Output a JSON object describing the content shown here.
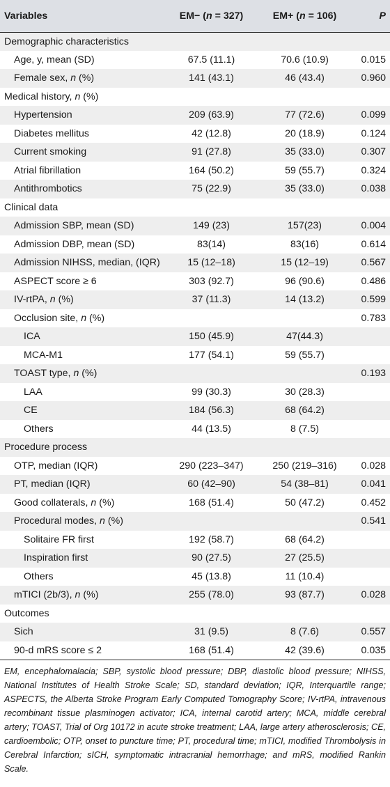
{
  "header": {
    "variables": "Variables",
    "em_minus": "EM− (n = 327)",
    "em_plus": "EM+ (n = 106)",
    "p": "P"
  },
  "rows": [
    {
      "label": "Demographic characteristics",
      "level": 0,
      "em_minus": "",
      "em_plus": "",
      "p": ""
    },
    {
      "label": "Age, y, mean (SD)",
      "level": 1,
      "em_minus": "67.5 (11.1)",
      "em_plus": "70.6 (10.9)",
      "p": "0.015"
    },
    {
      "label": "Female sex, n (%)",
      "level": 1,
      "em_minus": "141 (43.1)",
      "em_plus": "46 (43.4)",
      "p": "0.960"
    },
    {
      "label": "Medical history, n (%)",
      "level": 0,
      "em_minus": "",
      "em_plus": "",
      "p": ""
    },
    {
      "label": "Hypertension",
      "level": 1,
      "em_minus": "209 (63.9)",
      "em_plus": "77 (72.6)",
      "p": "0.099"
    },
    {
      "label": "Diabetes mellitus",
      "level": 1,
      "em_minus": "42 (12.8)",
      "em_plus": "20 (18.9)",
      "p": "0.124"
    },
    {
      "label": "Current smoking",
      "level": 1,
      "em_minus": "91 (27.8)",
      "em_plus": "35 (33.0)",
      "p": "0.307"
    },
    {
      "label": "Atrial fibrillation",
      "level": 1,
      "em_minus": "164 (50.2)",
      "em_plus": "59 (55.7)",
      "p": "0.324"
    },
    {
      "label": "Antithrombotics",
      "level": 1,
      "em_minus": "75 (22.9)",
      "em_plus": "35 (33.0)",
      "p": "0.038"
    },
    {
      "label": "Clinical data",
      "level": 0,
      "em_minus": "",
      "em_plus": "",
      "p": ""
    },
    {
      "label": "Admission SBP, mean (SD)",
      "level": 1,
      "em_minus": "149 (23)",
      "em_plus": "157(23)",
      "p": "0.004"
    },
    {
      "label": "Admission DBP, mean (SD)",
      "level": 1,
      "em_minus": "83(14)",
      "em_plus": "83(16)",
      "p": "0.614"
    },
    {
      "label": "Admission NIHSS, median, (IQR)",
      "level": 1,
      "em_minus": "15 (12–18)",
      "em_plus": "15 (12–19)",
      "p": "0.567"
    },
    {
      "label": "ASPECT score ≥ 6",
      "level": 1,
      "em_minus": "303 (92.7)",
      "em_plus": "96 (90.6)",
      "p": "0.486"
    },
    {
      "label": "IV-rtPA, n (%)",
      "level": 1,
      "em_minus": "37 (11.3)",
      "em_plus": "14 (13.2)",
      "p": "0.599"
    },
    {
      "label": "Occlusion site, n (%)",
      "level": 1,
      "em_minus": "",
      "em_plus": "",
      "p": "0.783"
    },
    {
      "label": "ICA",
      "level": 2,
      "em_minus": "150 (45.9)",
      "em_plus": "47(44.3)",
      "p": ""
    },
    {
      "label": "MCA-M1",
      "level": 2,
      "em_minus": "177 (54.1)",
      "em_plus": "59 (55.7)",
      "p": ""
    },
    {
      "label": "TOAST type, n (%)",
      "level": 1,
      "em_minus": "",
      "em_plus": "",
      "p": "0.193"
    },
    {
      "label": "LAA",
      "level": 2,
      "em_minus": "99 (30.3)",
      "em_plus": "30 (28.3)",
      "p": ""
    },
    {
      "label": "CE",
      "level": 2,
      "em_minus": "184 (56.3)",
      "em_plus": "68 (64.2)",
      "p": ""
    },
    {
      "label": "Others",
      "level": 2,
      "em_minus": "44 (13.5)",
      "em_plus": "8 (7.5)",
      "p": ""
    },
    {
      "label": "Procedure process",
      "level": 0,
      "em_minus": "",
      "em_plus": "",
      "p": ""
    },
    {
      "label": "OTP, median (IQR)",
      "level": 1,
      "em_minus": "290 (223–347)",
      "em_plus": "250 (219–316)",
      "p": "0.028"
    },
    {
      "label": "PT, median (IQR)",
      "level": 1,
      "em_minus": "60 (42–90)",
      "em_plus": "54 (38–81)",
      "p": "0.041"
    },
    {
      "label": "Good collaterals, n (%)",
      "level": 1,
      "em_minus": "168 (51.4)",
      "em_plus": "50 (47.2)",
      "p": "0.452"
    },
    {
      "label": "Procedural modes, n (%)",
      "level": 1,
      "em_minus": "",
      "em_plus": "",
      "p": "0.541"
    },
    {
      "label": "Solitaire FR first",
      "level": 2,
      "em_minus": "192 (58.7)",
      "em_plus": "68 (64.2)",
      "p": ""
    },
    {
      "label": "Inspiration first",
      "level": 2,
      "em_minus": "90 (27.5)",
      "em_plus": "27 (25.5)",
      "p": ""
    },
    {
      "label": "Others",
      "level": 2,
      "em_minus": "45 (13.8)",
      "em_plus": "11 (10.4)",
      "p": ""
    },
    {
      "label": "mTICI (2b/3), n (%)",
      "level": 1,
      "em_minus": "255 (78.0)",
      "em_plus": "93 (87.7)",
      "p": "0.028"
    },
    {
      "label": "Outcomes",
      "level": 0,
      "em_minus": "",
      "em_plus": "",
      "p": ""
    },
    {
      "label": "Sich",
      "level": 1,
      "em_minus": "31 (9.5)",
      "em_plus": "8 (7.6)",
      "p": "0.557"
    },
    {
      "label": "90-d mRS score ≤ 2",
      "level": 1,
      "em_minus": "168 (51.4)",
      "em_plus": "42 (39.6)",
      "p": "0.035"
    }
  ],
  "footnote": "EM, encephalomalacia; SBP, systolic blood pressure; DBP, diastolic blood pressure; NIHSS, National Institutes of Health Stroke Scale; SD, standard deviation; IQR, Interquartile range; ASPECTS, the Alberta Stroke Program Early Computed Tomography Score; IV-rtPA, intravenous recombinant tissue plasminogen activator; ICA, internal carotid artery; MCA, middle cerebral artery; TOAST, Trial of Org 10172 in acute stroke treatment; LAA, large artery atherosclerosis; CE, cardioembolic; OTP, onset to puncture time; PT, procedural time; mTICI, modified Thrombolysis in Cerebral Infarction; sICH, symptomatic intracranial hemorrhage; and mRS, modified Rankin Scale."
}
